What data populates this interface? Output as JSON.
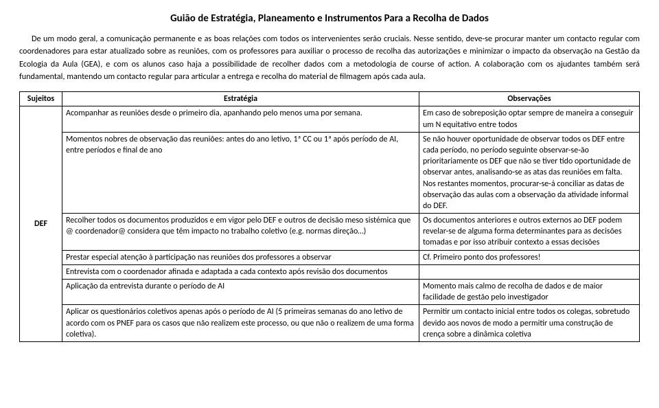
{
  "title": "Guião de Estratégia, Planeamento e Instrumentos Para a Recolha de Dados",
  "intro": "De um modo geral, a comunicação permanente e as boas relações com todos os intervenientes serão cruciais. Nesse sentido, deve-se procurar manter um contacto regular com coordenadores para estar atualizado sobre as reuniões, com os professores para auxiliar o processo de recolha das autorizações e minimizar o impacto da observação na Gestão da Ecologia da Aula (GEA), e com os alunos caso haja a possibilidade de recolher dados com a metodologia de course of action. A colaboração com os ajudantes também será fundamental, mantendo um contacto regular para articular a entrega e recolha do material de filmagem após cada aula.",
  "table": {
    "headers": {
      "sujeitos": "Sujeitos",
      "estrategia": "Estratégia",
      "observacoes": "Observações"
    },
    "subject": "DEF",
    "rows": [
      {
        "estrategia": "Acompanhar as reuniões desde o primeiro dia, apanhando pelo menos uma por semana.",
        "observacoes": "Em caso de sobreposição optar sempre de maneira a conseguir um N equitativo entre todos"
      },
      {
        "estrategia": "Momentos nobres de observação das reuniões: antes do ano letivo, 1ª CC ou 1ª após período de AI, entre períodos e final de ano",
        "observacoes": "Se não houver oportunidade de observar todos os DEF entre cada período, no período seguinte observar-se-ão prioritariamente os DEF que não se tiver tido oportunidade de observar antes, analisando-se as atas das reuniões em falta. Nos restantes momentos, procurar-se-á conciliar as datas de observação das aulas com a observação da atividade informal do DEF."
      },
      {
        "estrategia": "Recolher todos os documentos produzidos e em vigor pelo DEF e outros de decisão meso sistémica que @ coordenador@ considera que têm impacto no trabalho coletivo (e.g. normas direção…)",
        "observacoes": "Os documentos anteriores e outros externos ao DEF podem revelar-se de alguma forma determinantes para as decisões tomadas e por isso atribuir contexto a essas decisões"
      },
      {
        "estrategia": "Prestar especial atenção à participação nas reuniões dos professores a observar",
        "observacoes": "Cf. Primeiro ponto dos professores!"
      },
      {
        "estrategia": "Entrevista com o coordenador afinada e adaptada a cada contexto após revisão dos documentos",
        "observacoes": ""
      },
      {
        "estrategia": "Aplicação da entrevista durante o período de AI",
        "observacoes": "Momento mais calmo de recolha de dados e de maior facilidade de gestão pelo investigador"
      },
      {
        "estrategia": "Aplicar os questionários coletivos apenas após o período de AI (5 primeiras semanas do ano letivo de acordo com os PNEF para os casos que não realizem este processo, ou que não o realizem de uma forma coletiva).",
        "observacoes": "Permitir um contacto inicial entre todos os colegas, sobretudo devido aos novos de modo a permitir uma construção de crença sobre a dinâmica coletiva"
      }
    ]
  }
}
